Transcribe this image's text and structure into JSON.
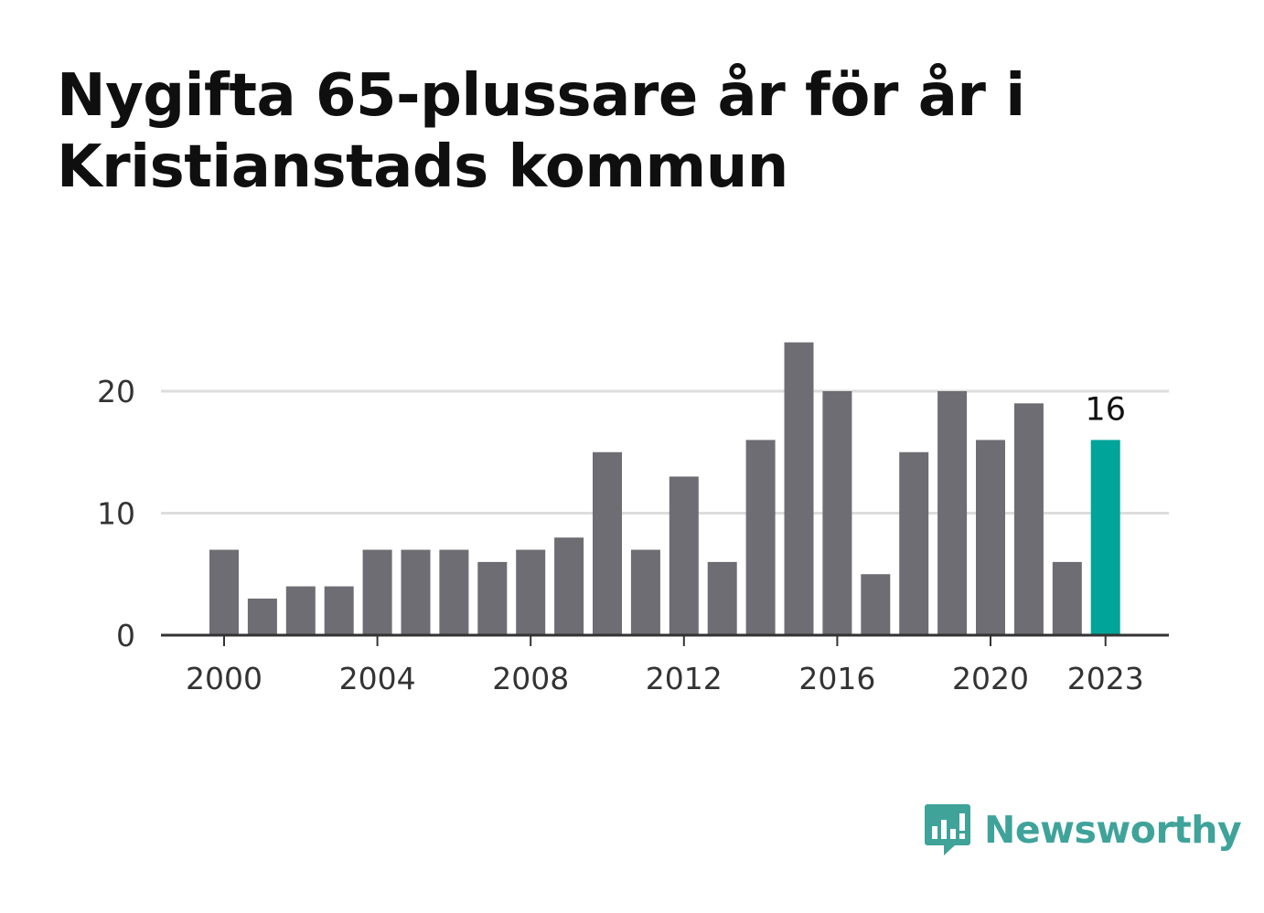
{
  "header": {
    "title": "Nygifta 65-plussare år för år i Kristianstads kommun"
  },
  "colors": {
    "bar": "#6e6d73",
    "highlight": "#00a499",
    "grid": "#dddddd",
    "axis": "#333333",
    "brand": "#3fa39a"
  },
  "chart_data": {
    "type": "bar",
    "categories": [
      "2000",
      "2001",
      "2002",
      "2003",
      "2004",
      "2005",
      "2006",
      "2007",
      "2008",
      "2009",
      "2010",
      "2011",
      "2012",
      "2013",
      "2014",
      "2015",
      "2016",
      "2017",
      "2018",
      "2019",
      "2020",
      "2021",
      "2022",
      "2023"
    ],
    "values": [
      7,
      3,
      4,
      4,
      7,
      7,
      7,
      6,
      7,
      8,
      15,
      7,
      13,
      6,
      16,
      24,
      20,
      5,
      15,
      20,
      16,
      19,
      6,
      16
    ],
    "title": "Nygifta 65-plussare år för år i Kristianstads kommun",
    "xlabel": "",
    "ylabel": "",
    "ylim": [
      0,
      25
    ],
    "yticks": [
      0,
      10,
      20
    ],
    "xtick_labels": [
      "2000",
      "2004",
      "2008",
      "2012",
      "2016",
      "2020",
      "2023"
    ],
    "highlight": {
      "category": "2023",
      "label": "16"
    },
    "grid": true,
    "legend": "none"
  },
  "logo": {
    "name": "Newsworthy",
    "icon": "newsworthy-logo-icon"
  }
}
